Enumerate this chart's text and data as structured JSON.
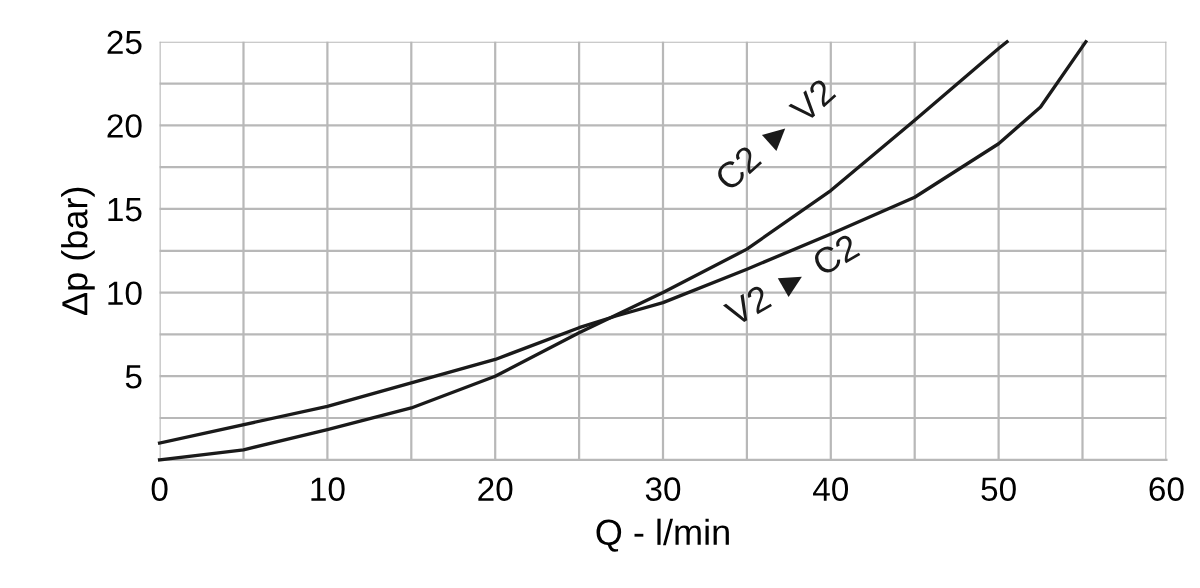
{
  "chart_data": {
    "type": "line",
    "xlabel": "Q - l/min",
    "ylabel": "Δp (bar)",
    "xlim": [
      0,
      60
    ],
    "ylim": [
      0,
      25
    ],
    "xticks": [
      0,
      {
        "value": 5,
        "label": null
      },
      10,
      {
        "value": 15,
        "label": null
      },
      20,
      {
        "value": 25,
        "label": null
      },
      30,
      {
        "value": 35,
        "label": null
      },
      40,
      {
        "value": 45,
        "label": null
      },
      50,
      {
        "value": 55,
        "label": null
      },
      60
    ],
    "yticks": [
      {
        "value": 2.5,
        "label": null
      },
      5,
      {
        "value": 7.5,
        "label": null
      },
      10,
      {
        "value": 12.5,
        "label": null
      },
      15,
      {
        "value": 17.5,
        "label": null
      },
      20,
      {
        "value": 22.5,
        "label": null
      },
      25
    ],
    "grid": true,
    "marker": "none",
    "line_style": "solid",
    "series": [
      {
        "name": "C2 ► V2",
        "color": "#1a1a1a",
        "x": [
          0,
          5,
          10,
          15,
          20,
          25,
          30,
          35,
          40,
          45,
          50,
          50.5
        ],
        "values": [
          0,
          0.6,
          1.8,
          3.1,
          5.0,
          7.6,
          10.0,
          12.6,
          16.1,
          20.3,
          24.6,
          25
        ]
      },
      {
        "name": "V2 ► C2",
        "color": "#1a1a1a",
        "x": [
          0,
          10,
          20,
          25,
          27.2,
          30,
          35,
          40,
          45,
          50,
          52.5,
          55.2
        ],
        "values": [
          1.0,
          3.2,
          6.0,
          7.9,
          8.6,
          9.4,
          11.4,
          13.5,
          15.7,
          18.9,
          21.1,
          25
        ]
      }
    ]
  }
}
